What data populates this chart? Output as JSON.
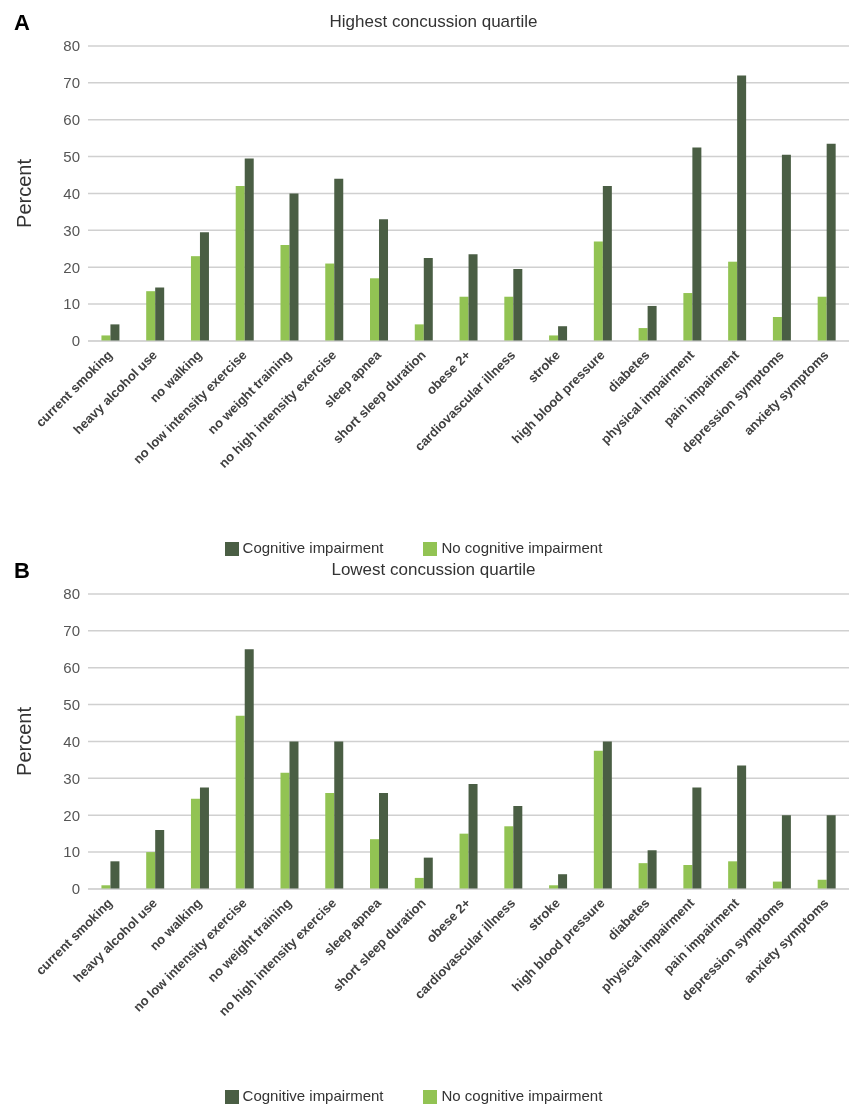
{
  "chart_data": [
    {
      "type": "bar",
      "title": "Highest concussion quartile",
      "annotations": [
        "A"
      ],
      "ylabel": "Percent",
      "categories": [
        "current smoking",
        "heavy alcohol use",
        "no walking",
        "no low intensity exercise",
        "no weight training",
        "no high intensity exercise",
        "sleep apnea",
        "short sleep duration",
        "obese 2+",
        "cardiovascular illness",
        "stroke",
        "high blood pressure",
        "diabetes",
        "physical impairment",
        "pain impairment",
        "depression symptoms",
        "anxiety symptoms"
      ],
      "series": [
        {
          "name": "No cognitive impairment",
          "color": "#92c353",
          "values": [
            1.5,
            13.5,
            23,
            42,
            26,
            21,
            17,
            4.5,
            12,
            12,
            1.5,
            27,
            3.5,
            13,
            21.5,
            6.5,
            12
          ]
        },
        {
          "name": "Cognitive impairment",
          "color": "#4a5e44",
          "values": [
            4.5,
            14.5,
            29.5,
            49.5,
            40,
            44,
            33,
            22.5,
            23.5,
            19.5,
            4,
            42,
            9.5,
            52.5,
            72,
            50.5,
            53.5
          ]
        }
      ],
      "ylim": [
        0,
        80
      ],
      "yticks": [
        0,
        10,
        20,
        30,
        40,
        50,
        60,
        70,
        80
      ],
      "grid": "y",
      "legend": "bottom"
    },
    {
      "type": "bar",
      "title": "Lowest concussion quartile",
      "annotations": [
        "B"
      ],
      "ylabel": "Percent",
      "categories": [
        "current smoking",
        "heavy alcohol use",
        "no walking",
        "no low intensity exercise",
        "no weight training",
        "no high intensity exercise",
        "sleep apnea",
        "short sleep duration",
        "obese 2+",
        "cardiovascular illness",
        "stroke",
        "high blood pressure",
        "diabetes",
        "physical impairment",
        "pain impairment",
        "depression symptoms",
        "anxiety symptoms"
      ],
      "series": [
        {
          "name": "No cognitive impairment",
          "color": "#92c353",
          "values": [
            1,
            10,
            24.5,
            47,
            31.5,
            26,
            13.5,
            3,
            15,
            17,
            1,
            37.5,
            7,
            6.5,
            7.5,
            2,
            2.5
          ]
        },
        {
          "name": "Cognitive impairment",
          "color": "#4a5e44",
          "values": [
            7.5,
            16,
            27.5,
            65,
            40,
            40,
            26,
            8.5,
            28.5,
            22.5,
            4,
            40,
            10.5,
            27.5,
            33.5,
            20,
            20
          ]
        }
      ],
      "ylim": [
        0,
        80
      ],
      "yticks": [
        0,
        10,
        20,
        30,
        40,
        50,
        60,
        70,
        80
      ],
      "grid": "y",
      "legend": "bottom"
    }
  ]
}
